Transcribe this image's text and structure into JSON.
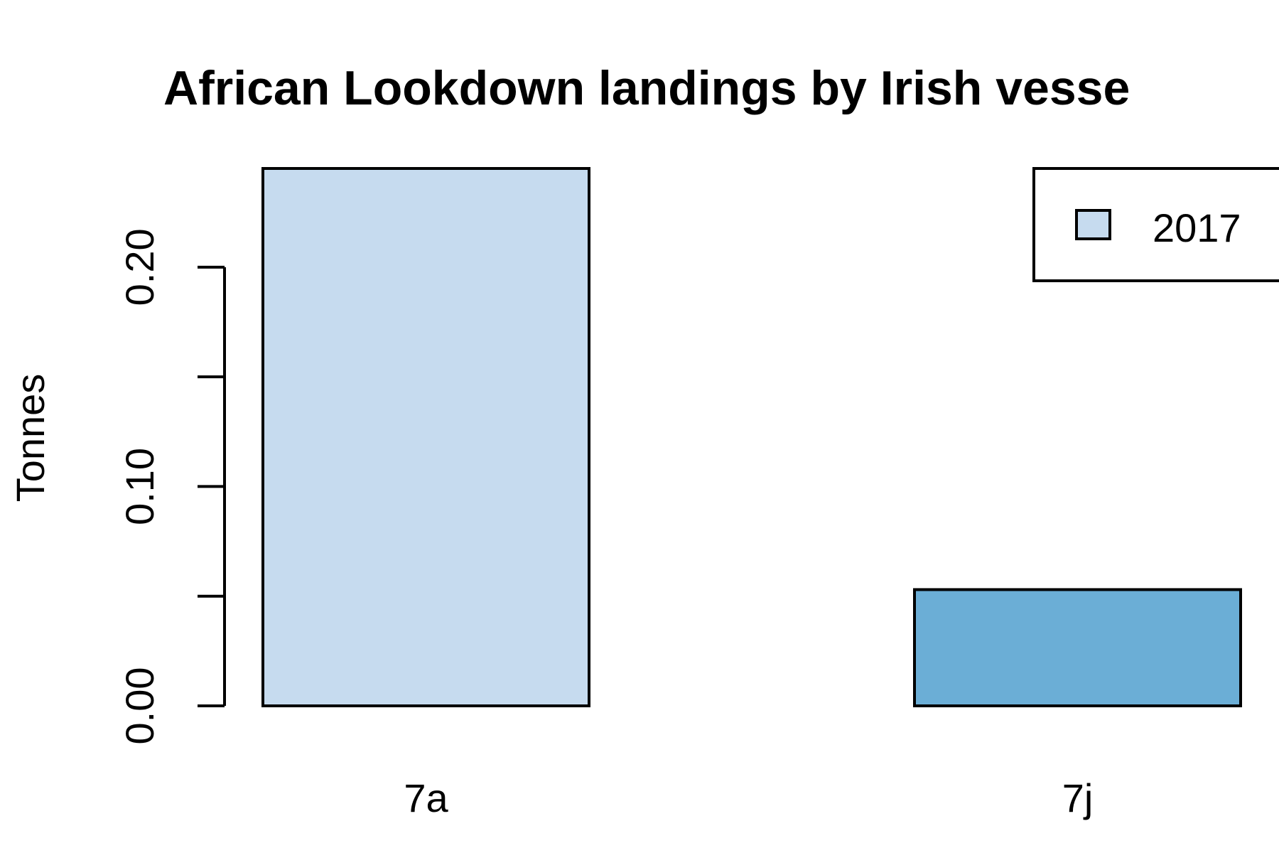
{
  "chart_data": {
    "type": "bar",
    "title": "African Lookdown landings by Irish vesse",
    "xlabel": "",
    "ylabel": "Tonnes",
    "categories": [
      "7a",
      "7j"
    ],
    "series": [
      {
        "name": "2017",
        "values": [
          0.245,
          0.053
        ]
      }
    ],
    "bar_colors": [
      "#c6dbef",
      "#6baed6"
    ],
    "legend_color": "#c6dbef",
    "ylim": [
      0,
      0.245
    ],
    "yticks": [
      0,
      0.05,
      0.1,
      0.15,
      0.2
    ],
    "ytick_labels": [
      "0.00",
      "",
      "0.10",
      "",
      "0.20"
    ],
    "legend_position": "top-right",
    "grid": false
  }
}
